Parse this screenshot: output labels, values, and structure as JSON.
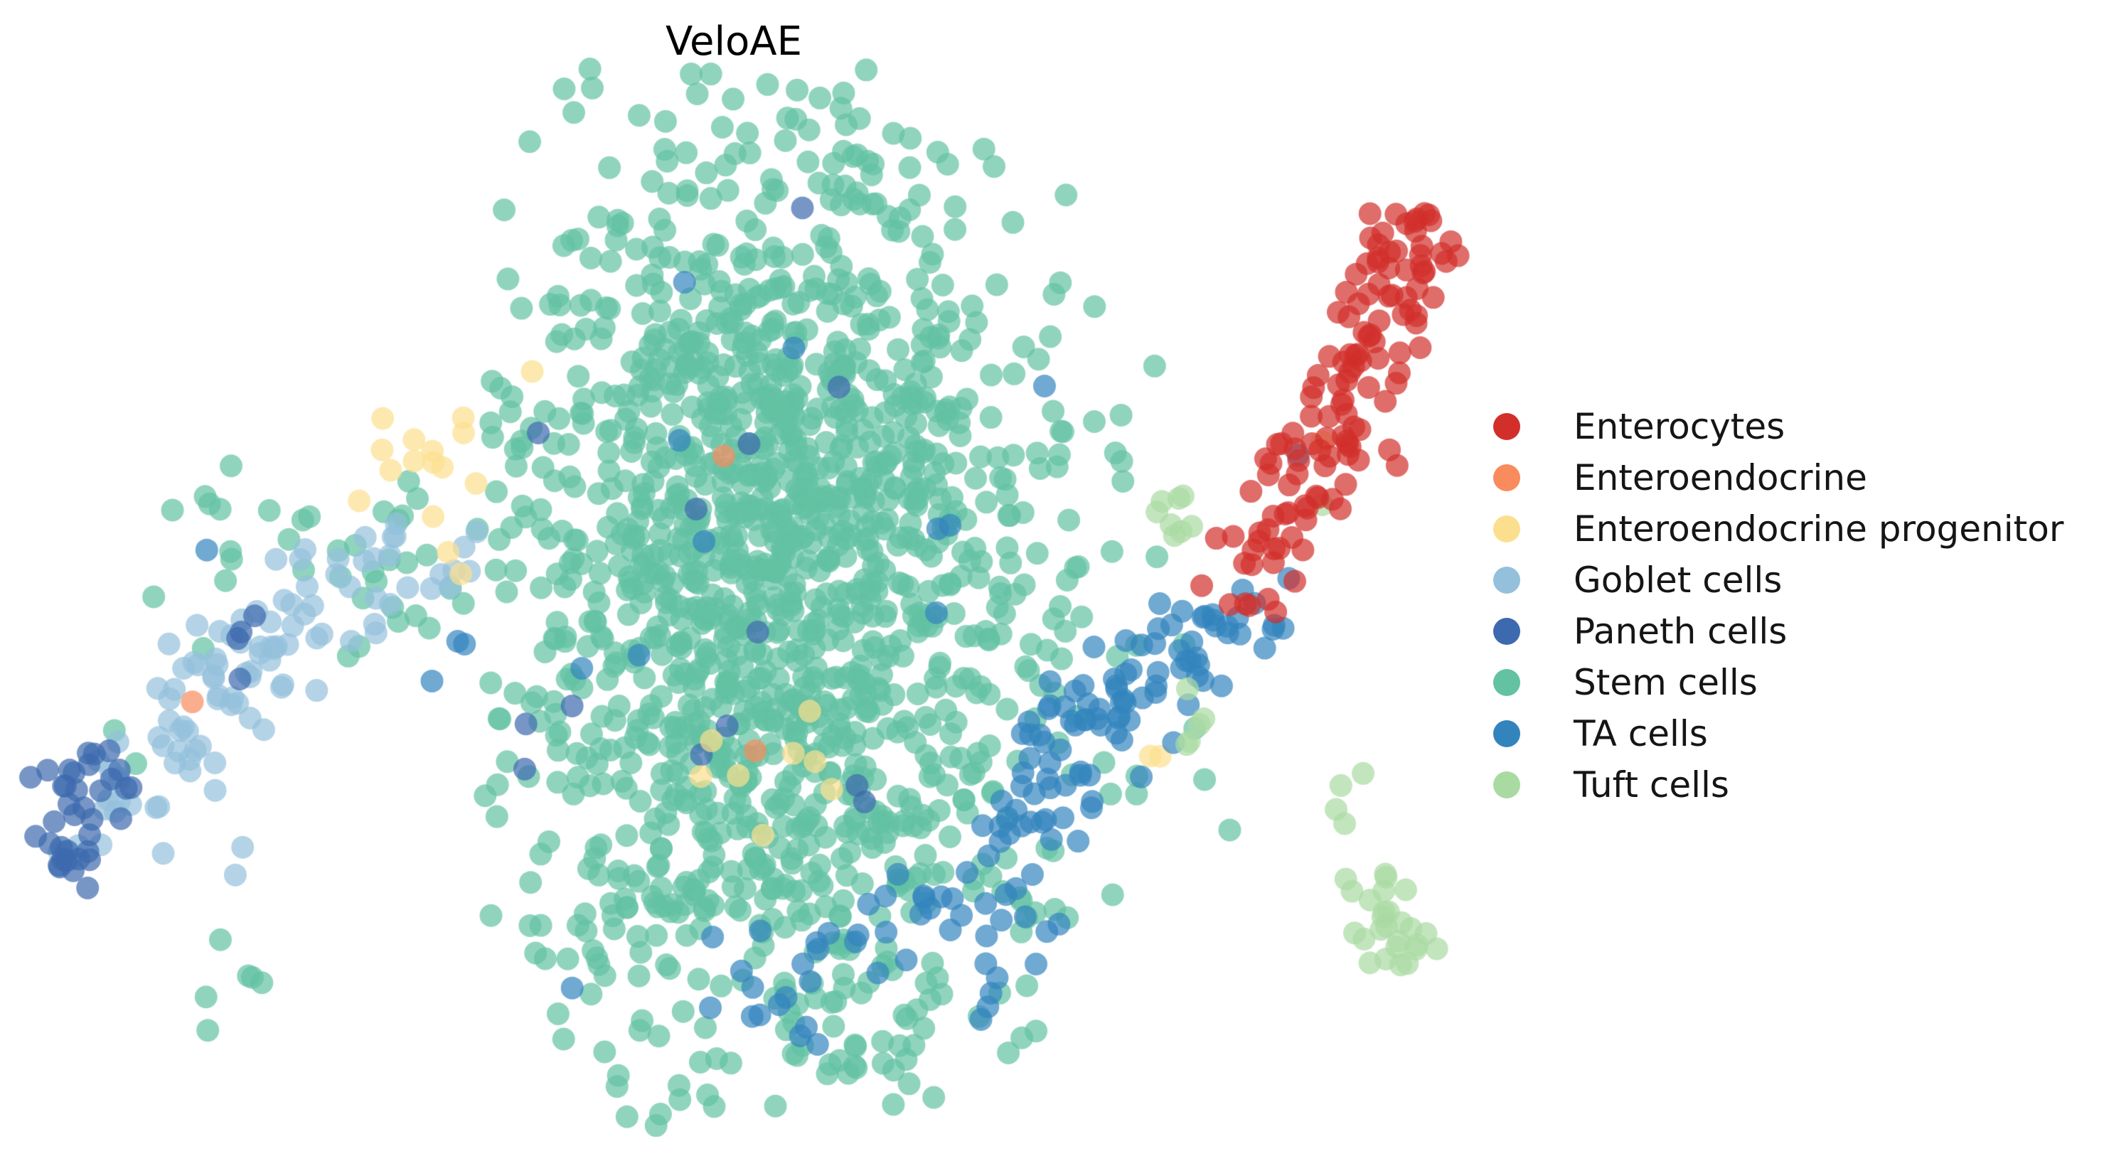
{
  "chart_data": {
    "type": "scatter",
    "title": "VeloAE",
    "xlabel": "",
    "ylabel": "",
    "axes_visible": false,
    "grid": false,
    "background": "#ffffff",
    "marker": {
      "radius_px": 16,
      "alpha": 0.7
    },
    "legend": {
      "position": "right",
      "marker_diameter_px": 38,
      "entries": [
        {
          "label": "Enterocytes",
          "color": "#d22f2b"
        },
        {
          "label": "Enteroendocrine",
          "color": "#f98b5c"
        },
        {
          "label": "Enteroendocrine progenitor",
          "color": "#fcdf8e"
        },
        {
          "label": "Goblet cells",
          "color": "#94c0dc"
        },
        {
          "label": "Paneth cells",
          "color": "#3d69ae"
        },
        {
          "label": "Stem cells",
          "color": "#62c2a2"
        },
        {
          "label": "TA cells",
          "color": "#3384bd"
        },
        {
          "label": "Tuft cells",
          "color": "#a9daa2"
        }
      ]
    },
    "series": [
      {
        "cell_type": "Stem cells",
        "color": "#62c2a2",
        "blobs": [
          {
            "cx": 1100,
            "cy": 830,
            "sx": 190,
            "sy": 335,
            "n": 1500,
            "t": 2.2
          },
          {
            "cx": 530,
            "cy": 800,
            "sx": 90,
            "sy": 75,
            "n": 26
          },
          {
            "cx": 300,
            "cy": 780,
            "sx": 80,
            "sy": 70,
            "n": 12
          },
          {
            "cx": 185,
            "cy": 1055,
            "sx": 15,
            "sy": 15,
            "n": 2
          },
          {
            "cx": 330,
            "cy": 1360,
            "sx": 60,
            "sy": 55,
            "n": 6
          },
          {
            "cx": 1530,
            "cy": 560,
            "sx": 60,
            "sy": 110,
            "n": 12
          },
          {
            "cx": 1560,
            "cy": 1000,
            "sx": 100,
            "sy": 150,
            "n": 18
          },
          {
            "cx": 910,
            "cy": 1580,
            "sx": 25,
            "sy": 18,
            "n": 3
          },
          {
            "cx": 1350,
            "cy": 1420,
            "sx": 90,
            "sy": 50,
            "n": 6
          }
        ]
      },
      {
        "cell_type": "Goblet cells",
        "color": "#94c0dc",
        "blobs": [
          {
            "cx": 560,
            "cy": 800,
            "sx": 65,
            "sy": 40,
            "n": 16
          },
          {
            "cx": 465,
            "cy": 838,
            "sx": 55,
            "sy": 42,
            "n": 18
          },
          {
            "cx": 365,
            "cy": 898,
            "sx": 50,
            "sy": 48,
            "n": 20
          },
          {
            "cx": 295,
            "cy": 975,
            "sx": 45,
            "sy": 50,
            "n": 18
          },
          {
            "cx": 230,
            "cy": 1045,
            "sx": 42,
            "sy": 50,
            "n": 16
          },
          {
            "cx": 165,
            "cy": 1125,
            "sx": 38,
            "sy": 48,
            "n": 12
          },
          {
            "cx": 125,
            "cy": 1190,
            "sx": 25,
            "sy": 28,
            "n": 4
          },
          {
            "cx": 335,
            "cy": 1205,
            "sx": 15,
            "sy": 15,
            "n": 2
          }
        ]
      },
      {
        "cell_type": "Paneth cells",
        "color": "#3d69ae",
        "blobs": [
          {
            "cx": 155,
            "cy": 1075,
            "sx": 40,
            "sy": 40,
            "n": 12
          },
          {
            "cx": 110,
            "cy": 1155,
            "sx": 35,
            "sy": 42,
            "n": 16
          },
          {
            "cx": 90,
            "cy": 1220,
            "sx": 26,
            "sy": 22,
            "n": 8
          },
          {
            "cx": 360,
            "cy": 915,
            "sx": 35,
            "sy": 30,
            "n": 4
          },
          {
            "cx": 1080,
            "cy": 880,
            "sx": 220,
            "sy": 330,
            "n": 13,
            "t": 1.8
          }
        ]
      },
      {
        "cell_type": "Enteroendocrine progenitor",
        "color": "#fcdf8e",
        "blobs": [
          {
            "cx": 595,
            "cy": 655,
            "sx": 55,
            "sy": 60,
            "n": 13
          },
          {
            "cx": 655,
            "cy": 800,
            "sx": 18,
            "sy": 12,
            "n": 2
          },
          {
            "cx": 743,
            "cy": 517,
            "sx": 8,
            "sy": 8,
            "n": 1
          },
          {
            "cx": 1100,
            "cy": 1090,
            "sx": 70,
            "sy": 85,
            "n": 8
          },
          {
            "cx": 1850,
            "cy": 620,
            "sx": 10,
            "sy": 10,
            "n": 1
          },
          {
            "cx": 1628,
            "cy": 1070,
            "sx": 16,
            "sy": 10,
            "n": 2
          }
        ]
      },
      {
        "cell_type": "TA cells",
        "color": "#3384bd",
        "blobs": [
          {
            "cx": 1745,
            "cy": 870,
            "sx": 35,
            "sy": 32,
            "n": 12
          },
          {
            "cx": 1680,
            "cy": 915,
            "sx": 40,
            "sy": 35,
            "n": 16
          },
          {
            "cx": 1600,
            "cy": 965,
            "sx": 50,
            "sy": 42,
            "n": 22
          },
          {
            "cx": 1530,
            "cy": 1030,
            "sx": 50,
            "sy": 45,
            "n": 24
          },
          {
            "cx": 1470,
            "cy": 1110,
            "sx": 45,
            "sy": 50,
            "n": 20
          },
          {
            "cx": 1430,
            "cy": 1210,
            "sx": 40,
            "sy": 55,
            "n": 14
          },
          {
            "cx": 1420,
            "cy": 1330,
            "sx": 40,
            "sy": 55,
            "n": 10
          },
          {
            "cx": 1300,
            "cy": 1290,
            "sx": 45,
            "sy": 45,
            "n": 10
          },
          {
            "cx": 1090,
            "cy": 1390,
            "sx": 70,
            "sy": 55,
            "n": 13
          },
          {
            "cx": 1200,
            "cy": 1320,
            "sx": 50,
            "sy": 45,
            "n": 9
          },
          {
            "cx": 1822,
            "cy": 632,
            "sx": 12,
            "sy": 12,
            "n": 1
          },
          {
            "cx": 1100,
            "cy": 800,
            "sx": 230,
            "sy": 340,
            "n": 12,
            "t": 1.9
          },
          {
            "cx": 645,
            "cy": 920,
            "sx": 25,
            "sy": 25,
            "n": 3
          },
          {
            "cx": 300,
            "cy": 778,
            "sx": 8,
            "sy": 8,
            "n": 1
          }
        ]
      },
      {
        "cell_type": "Tuft cells",
        "color": "#a9daa2",
        "blobs": [
          {
            "cx": 1962,
            "cy": 1310,
            "sx": 30,
            "sy": 38,
            "n": 20
          },
          {
            "cx": 1915,
            "cy": 1243,
            "sx": 32,
            "sy": 15,
            "n": 6
          },
          {
            "cx": 1657,
            "cy": 740,
            "sx": 26,
            "sy": 30,
            "n": 8
          },
          {
            "cx": 1685,
            "cy": 975,
            "sx": 22,
            "sy": 60,
            "n": 5
          },
          {
            "cx": 1872,
            "cy": 1130,
            "sx": 25,
            "sy": 35,
            "n": 4
          },
          {
            "cx": 1855,
            "cy": 710,
            "sx": 8,
            "sy": 8,
            "n": 1
          }
        ]
      },
      {
        "cell_type": "Enterocytes",
        "color": "#d22f2b",
        "blobs": [
          {
            "cx": 1990,
            "cy": 350,
            "sx": 42,
            "sy": 48,
            "n": 34
          },
          {
            "cx": 1935,
            "cy": 470,
            "sx": 40,
            "sy": 45,
            "n": 26
          },
          {
            "cx": 1885,
            "cy": 580,
            "sx": 45,
            "sy": 42,
            "n": 26
          },
          {
            "cx": 1838,
            "cy": 680,
            "sx": 42,
            "sy": 40,
            "n": 22
          },
          {
            "cx": 1795,
            "cy": 790,
            "sx": 38,
            "sy": 38,
            "n": 16
          },
          {
            "cx": 1755,
            "cy": 860,
            "sx": 25,
            "sy": 20,
            "n": 4
          },
          {
            "cx": 1712,
            "cy": 748,
            "sx": 18,
            "sy": 12,
            "n": 2
          },
          {
            "cx": 1680,
            "cy": 815,
            "sx": 10,
            "sy": 10,
            "n": 1
          }
        ]
      },
      {
        "cell_type": "Enteroendocrine",
        "color": "#f98b5c",
        "blobs": [
          {
            "cx": 272,
            "cy": 996,
            "sx": 6,
            "sy": 6,
            "n": 1
          },
          {
            "cx": 1067,
            "cy": 1060,
            "sx": 6,
            "sy": 6,
            "n": 1
          },
          {
            "cx": 1020,
            "cy": 640,
            "sx": 6,
            "sy": 6,
            "n": 1
          }
        ]
      }
    ]
  }
}
